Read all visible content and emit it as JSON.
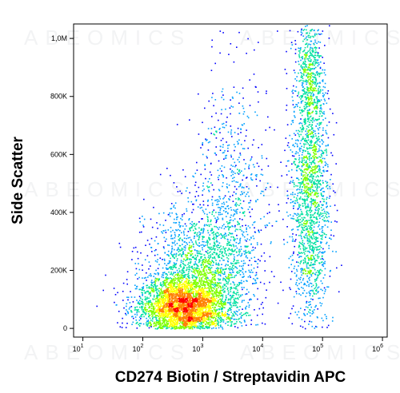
{
  "chart_data": {
    "type": "scatter",
    "subtype": "flow-cytometry density plot",
    "xlabel": "CD274 Biotin / Streptavidin APC",
    "ylabel": "Side Scatter",
    "xscale": "log",
    "xlim": [
      7,
      1200000
    ],
    "ylim": [
      -30000,
      1050000
    ],
    "x_ticks": [
      {
        "value": 10,
        "base": "10",
        "exp": "1"
      },
      {
        "value": 100,
        "base": "10",
        "exp": "2"
      },
      {
        "value": 1000,
        "base": "10",
        "exp": "3"
      },
      {
        "value": 10000,
        "base": "10",
        "exp": "4"
      },
      {
        "value": 100000,
        "base": "10",
        "exp": "5"
      },
      {
        "value": 1000000,
        "base": "10",
        "exp": "6"
      }
    ],
    "y_ticks": [
      {
        "value": 0,
        "label": "0"
      },
      {
        "value": 200000,
        "label": "200K"
      },
      {
        "value": 400000,
        "label": "400K"
      },
      {
        "value": 600000,
        "label": "600K"
      },
      {
        "value": 800000,
        "label": "800K"
      },
      {
        "value": 1000000,
        "label": "1,0M"
      }
    ],
    "populations": [
      {
        "x_center": 450,
        "y_center": 70000,
        "x_spread_log": 0.38,
        "y_spread": 55000,
        "count": 3200
      },
      {
        "x_center": 900,
        "y_center": 190000,
        "x_spread_log": 0.45,
        "y_spread": 120000,
        "count": 1800
      },
      {
        "x_center": 3000,
        "y_center": 430000,
        "x_spread_log": 0.3,
        "y_spread": 230000,
        "count": 700
      },
      {
        "x_center": 60000,
        "y_center": 480000,
        "x_spread_log": 0.16,
        "y_spread": 260000,
        "count": 1900
      },
      {
        "x_center": 60000,
        "y_center": 900000,
        "x_spread_log": 0.1,
        "y_spread": 90000,
        "count": 350
      }
    ],
    "grid": false,
    "colormap": [
      "#0000ff",
      "#00a0ff",
      "#00e0a0",
      "#7fff00",
      "#ffff00",
      "#ff8000",
      "#ff0000"
    ]
  },
  "watermark": "ABEOMICS"
}
